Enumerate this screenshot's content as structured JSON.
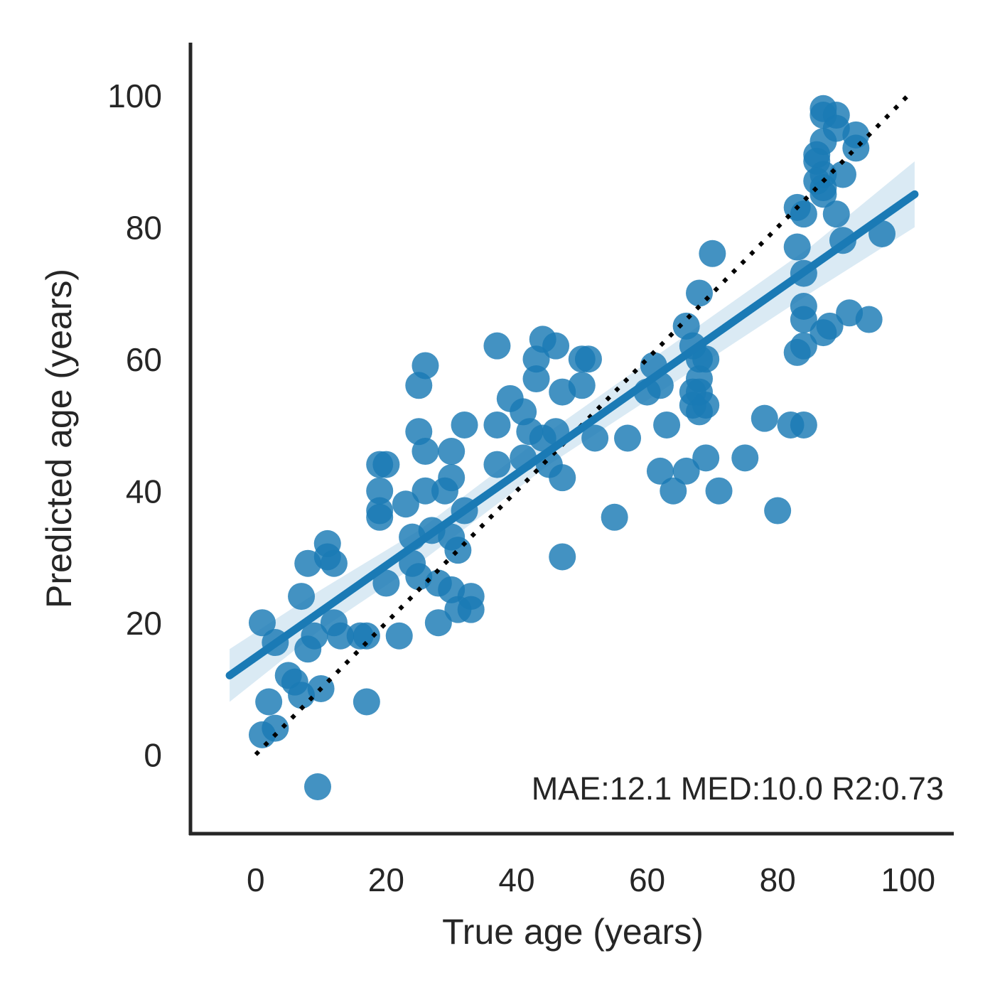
{
  "chart_data": {
    "type": "scatter",
    "xlabel": "True age (years)",
    "ylabel": "Predicted age (years)",
    "xlim": [
      -10,
      107
    ],
    "ylim": [
      -12,
      108
    ],
    "xticks": [
      0,
      20,
      40,
      60,
      80,
      100
    ],
    "yticks": [
      0,
      20,
      40,
      60,
      80,
      100
    ],
    "grid": false,
    "legend": {
      "position": "bottom-right",
      "label": "MAE:12.1 MED:10.0 R2:0.73"
    },
    "colors": {
      "points": "#1a7ab5",
      "fit_line": "#1a7ab5",
      "ci_band": "#cde3f0",
      "identity": "#000000",
      "axes": "#262626"
    },
    "fit_line": {
      "x": [
        -4,
        101
      ],
      "y": [
        12,
        85
      ]
    },
    "ci_band": {
      "x": [
        -4,
        10,
        25,
        45,
        65,
        85,
        101
      ],
      "lower": [
        8,
        19,
        29,
        44,
        57,
        70,
        80
      ],
      "upper": [
        16,
        25,
        34,
        49,
        63,
        77,
        90
      ]
    },
    "identity_line": {
      "x": [
        0,
        100
      ],
      "y": [
        0,
        100
      ]
    },
    "points": [
      {
        "x": 1,
        "y": 3
      },
      {
        "x": 3,
        "y": 4
      },
      {
        "x": 2,
        "y": 8
      },
      {
        "x": 1,
        "y": 20
      },
      {
        "x": 3,
        "y": 17
      },
      {
        "x": 5,
        "y": 12
      },
      {
        "x": 6,
        "y": 11
      },
      {
        "x": 7,
        "y": 9
      },
      {
        "x": 8,
        "y": 16
      },
      {
        "x": 9,
        "y": 18
      },
      {
        "x": 10,
        "y": 10
      },
      {
        "x": 7,
        "y": 24
      },
      {
        "x": 8,
        "y": 29
      },
      {
        "x": 11,
        "y": 30
      },
      {
        "x": 11,
        "y": 32
      },
      {
        "x": 12,
        "y": 29
      },
      {
        "x": 12,
        "y": 20
      },
      {
        "x": 13,
        "y": 18
      },
      {
        "x": 16,
        "y": 18
      },
      {
        "x": 17,
        "y": 18
      },
      {
        "x": 17,
        "y": 8
      },
      {
        "x": 19,
        "y": 36
      },
      {
        "x": 19,
        "y": 37
      },
      {
        "x": 19,
        "y": 40
      },
      {
        "x": 19,
        "y": 44
      },
      {
        "x": 20,
        "y": 44
      },
      {
        "x": 20,
        "y": 26
      },
      {
        "x": 22,
        "y": 18
      },
      {
        "x": 23,
        "y": 38
      },
      {
        "x": 24,
        "y": 33
      },
      {
        "x": 24,
        "y": 29
      },
      {
        "x": 25,
        "y": 27
      },
      {
        "x": 25,
        "y": 49
      },
      {
        "x": 25,
        "y": 56
      },
      {
        "x": 26,
        "y": 59
      },
      {
        "x": 26,
        "y": 46
      },
      {
        "x": 26,
        "y": 40
      },
      {
        "x": 27,
        "y": 34
      },
      {
        "x": 28,
        "y": 26
      },
      {
        "x": 28,
        "y": 20
      },
      {
        "x": 29,
        "y": 40
      },
      {
        "x": 30,
        "y": 42
      },
      {
        "x": 30,
        "y": 46
      },
      {
        "x": 30,
        "y": 33
      },
      {
        "x": 30,
        "y": 25
      },
      {
        "x": 31,
        "y": 31
      },
      {
        "x": 31,
        "y": 22
      },
      {
        "x": 32,
        "y": 37
      },
      {
        "x": 32,
        "y": 50
      },
      {
        "x": 33,
        "y": 24
      },
      {
        "x": 33,
        "y": 22
      },
      {
        "x": 37,
        "y": 62
      },
      {
        "x": 37,
        "y": 50
      },
      {
        "x": 37,
        "y": 44
      },
      {
        "x": 39,
        "y": 54
      },
      {
        "x": 41,
        "y": 52
      },
      {
        "x": 41,
        "y": 45
      },
      {
        "x": 42,
        "y": 49
      },
      {
        "x": 43,
        "y": 60
      },
      {
        "x": 43,
        "y": 57
      },
      {
        "x": 44,
        "y": 63
      },
      {
        "x": 44,
        "y": 48
      },
      {
        "x": 45,
        "y": 44
      },
      {
        "x": 46,
        "y": 62
      },
      {
        "x": 46,
        "y": 49
      },
      {
        "x": 47,
        "y": 55
      },
      {
        "x": 47,
        "y": 42
      },
      {
        "x": 47,
        "y": 30
      },
      {
        "x": 50,
        "y": 60
      },
      {
        "x": 50,
        "y": 56
      },
      {
        "x": 51,
        "y": 60
      },
      {
        "x": 52,
        "y": 48
      },
      {
        "x": 55,
        "y": 36
      },
      {
        "x": 57,
        "y": 48
      },
      {
        "x": 60,
        "y": 55
      },
      {
        "x": 61,
        "y": 59
      },
      {
        "x": 62,
        "y": 43
      },
      {
        "x": 62,
        "y": 56
      },
      {
        "x": 63,
        "y": 50
      },
      {
        "x": 64,
        "y": 40
      },
      {
        "x": 66,
        "y": 43
      },
      {
        "x": 66,
        "y": 65
      },
      {
        "x": 67,
        "y": 62
      },
      {
        "x": 67,
        "y": 55
      },
      {
        "x": 67,
        "y": 53
      },
      {
        "x": 68,
        "y": 60
      },
      {
        "x": 68,
        "y": 57
      },
      {
        "x": 68,
        "y": 55
      },
      {
        "x": 68,
        "y": 52
      },
      {
        "x": 68,
        "y": 70
      },
      {
        "x": 69,
        "y": 45
      },
      {
        "x": 69,
        "y": 53
      },
      {
        "x": 69,
        "y": 60
      },
      {
        "x": 70,
        "y": 76
      },
      {
        "x": 71,
        "y": 40
      },
      {
        "x": 75,
        "y": 45
      },
      {
        "x": 78,
        "y": 51
      },
      {
        "x": 80,
        "y": 37
      },
      {
        "x": 82,
        "y": 50
      },
      {
        "x": 83,
        "y": 77
      },
      {
        "x": 83,
        "y": 83
      },
      {
        "x": 83,
        "y": 61
      },
      {
        "x": 84,
        "y": 82
      },
      {
        "x": 84,
        "y": 73
      },
      {
        "x": 84,
        "y": 68
      },
      {
        "x": 84,
        "y": 66
      },
      {
        "x": 84,
        "y": 62
      },
      {
        "x": 84,
        "y": 50
      },
      {
        "x": 86,
        "y": 91
      },
      {
        "x": 86,
        "y": 90
      },
      {
        "x": 86,
        "y": 87
      },
      {
        "x": 87,
        "y": 98
      },
      {
        "x": 87,
        "y": 97
      },
      {
        "x": 87,
        "y": 93
      },
      {
        "x": 87,
        "y": 88
      },
      {
        "x": 87,
        "y": 86
      },
      {
        "x": 87,
        "y": 85
      },
      {
        "x": 87,
        "y": 64
      },
      {
        "x": 88,
        "y": 65
      },
      {
        "x": 89,
        "y": 97
      },
      {
        "x": 89,
        "y": 95
      },
      {
        "x": 89,
        "y": 82
      },
      {
        "x": 90,
        "y": 88
      },
      {
        "x": 90,
        "y": 78
      },
      {
        "x": 91,
        "y": 67
      },
      {
        "x": 92,
        "y": 94
      },
      {
        "x": 92,
        "y": 92
      },
      {
        "x": 94,
        "y": 66
      },
      {
        "x": 96,
        "y": 79
      }
    ]
  }
}
